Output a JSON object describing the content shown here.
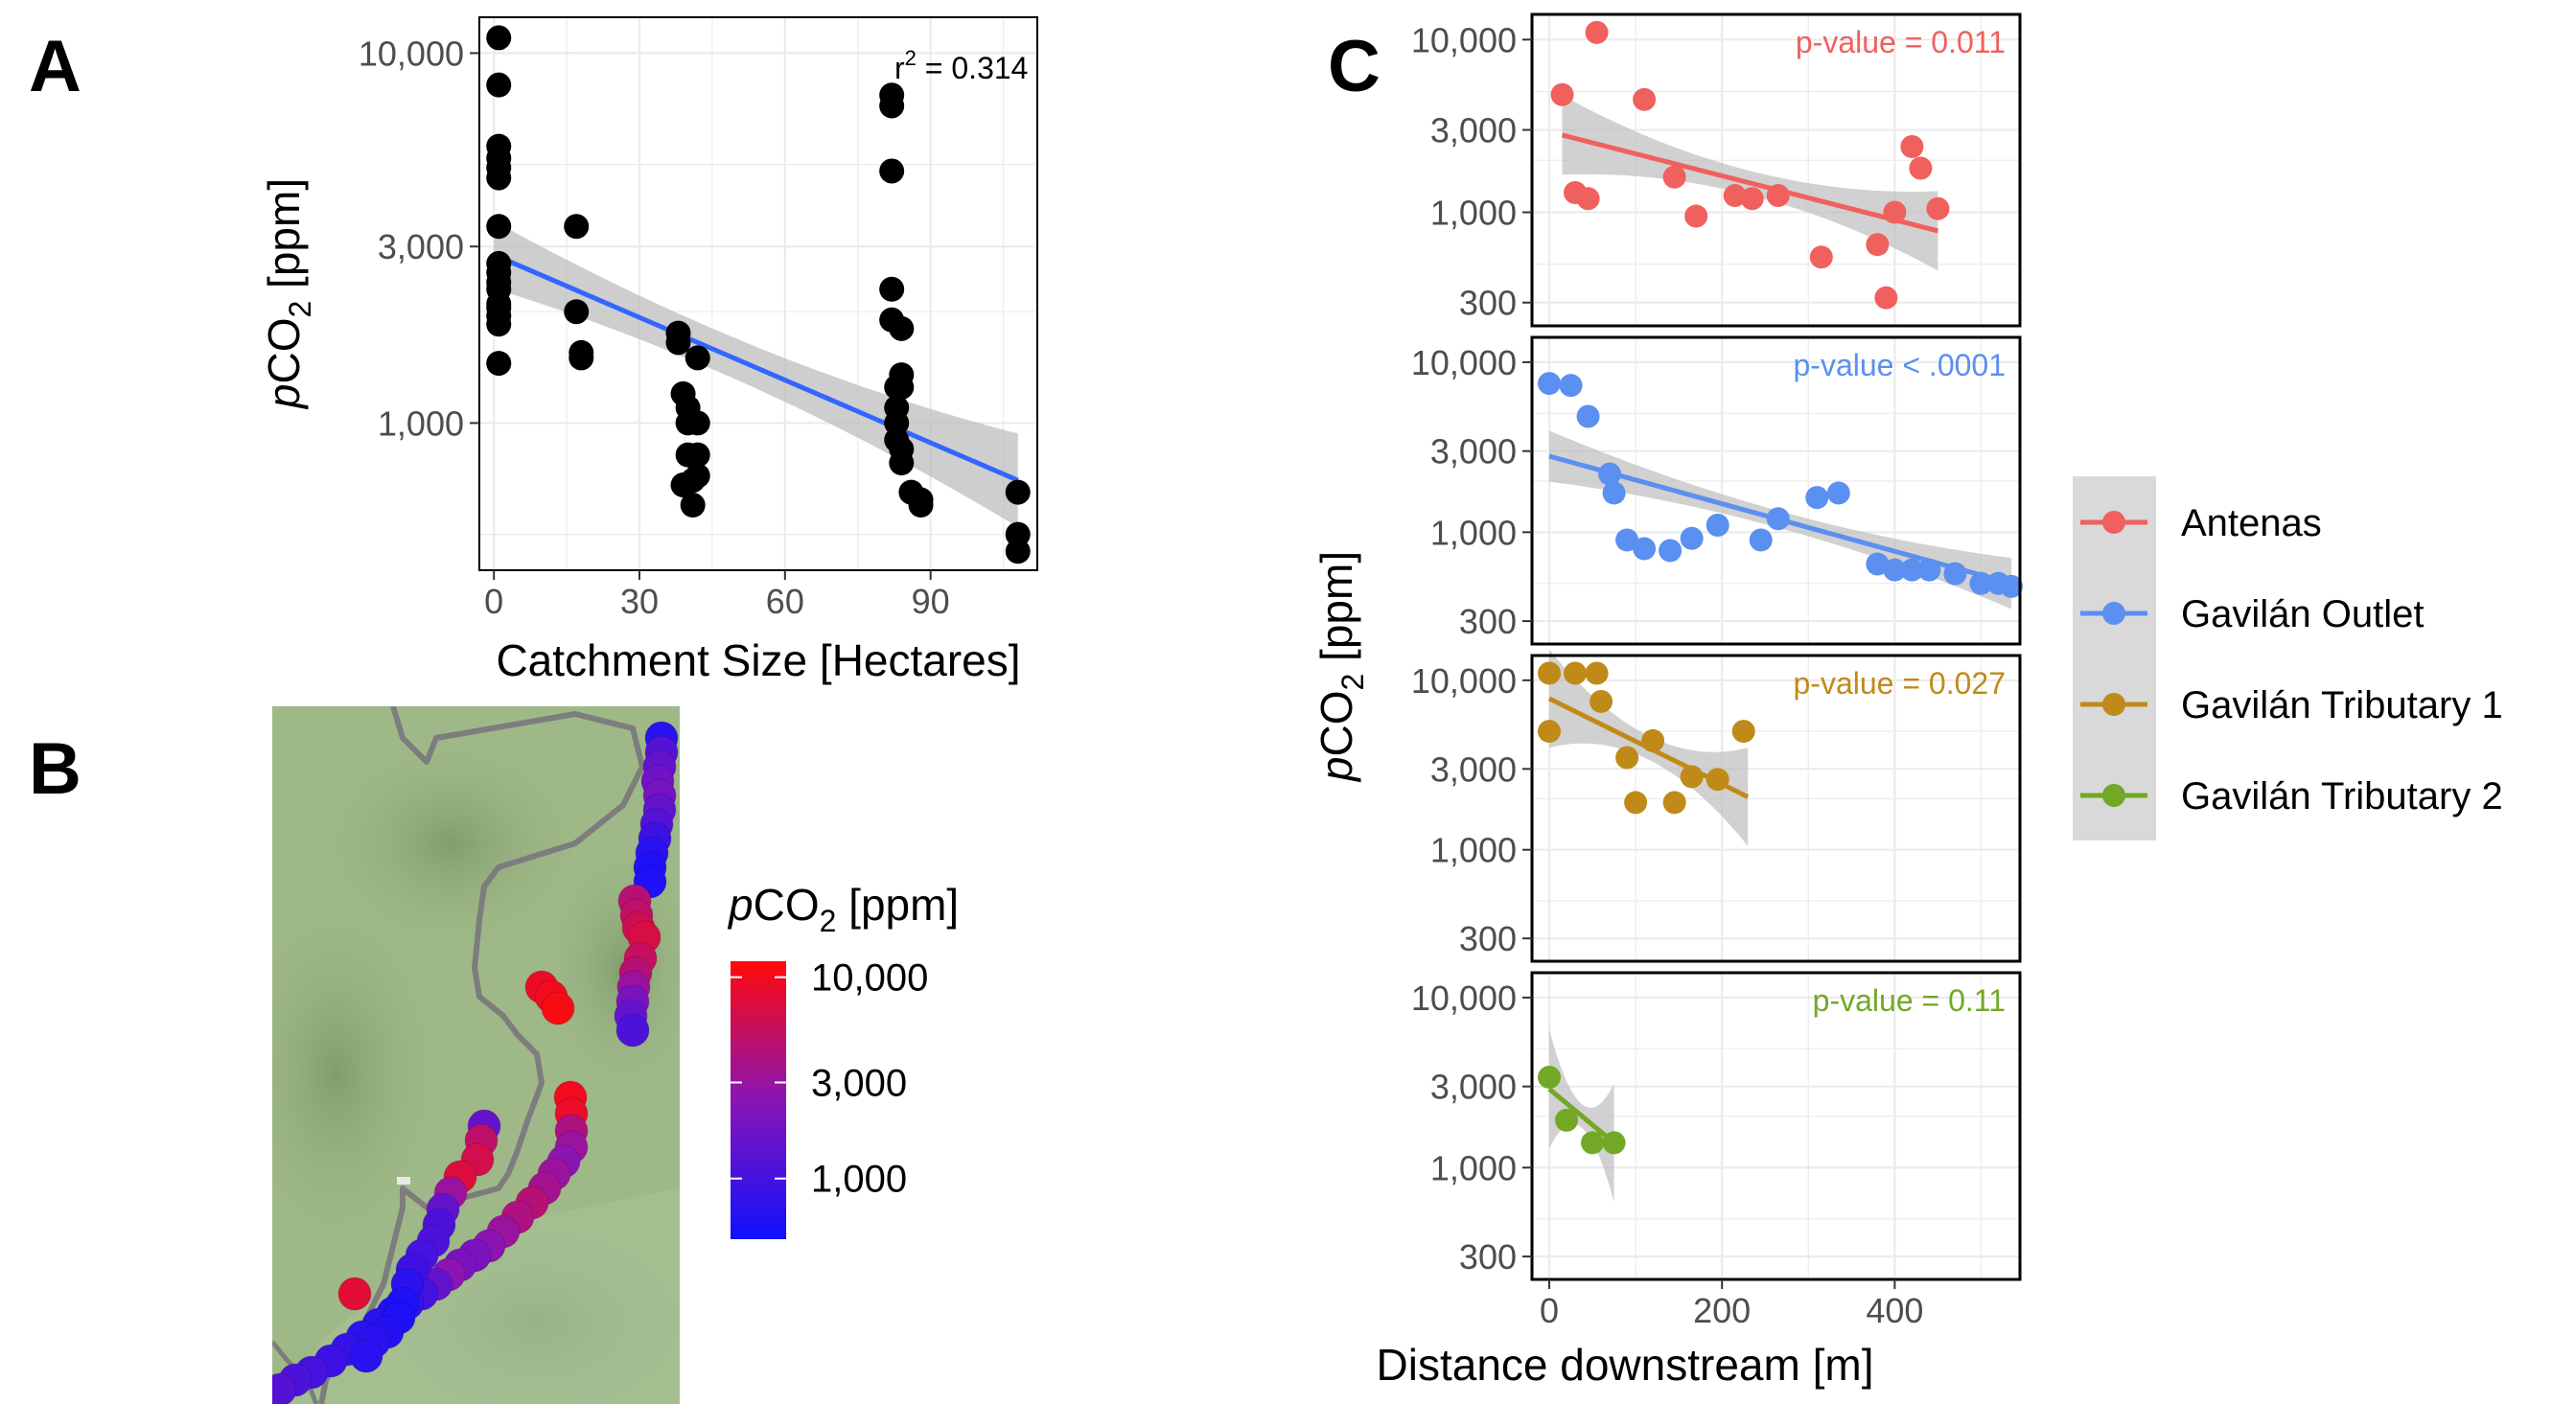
{
  "colors": {
    "black": "#000000",
    "fit_line_A": "#3366ff",
    "ci_band": "#bdbdbd",
    "antenas": "#f0605d",
    "gavilan_outlet": "#5b8ff0",
    "gavilan_trib1": "#c08a18",
    "gavilan_trib2": "#72a825",
    "map_bg": "#9fb888",
    "scale_low": "#1010ff",
    "scale_high": "#ff0a0a"
  },
  "panels": {
    "a_label": "A",
    "b_label": "B",
    "c_label": "C"
  },
  "panelA": {
    "xlabel": "Catchment Size [Hectares]",
    "ylabel": "pCO2 [ppm]",
    "ylabel_p": "p",
    "ylabel_co": "CO",
    "ylabel_sub": "2",
    "ylabel_unit": " [ppm]",
    "r2_r": "r",
    "r2_sup": "2",
    "r2_val": " = 0.314",
    "xticks": [
      "0",
      "30",
      "60",
      "90"
    ],
    "yticks": [
      "1,000",
      "3,000",
      "10,000"
    ]
  },
  "panelB": {
    "legend_title_p": "p",
    "legend_title_co": "CO",
    "legend_title_sub": "2",
    "legend_title_unit": " [ppm]",
    "legend_ticks": [
      "1,000",
      "3,000",
      "10,000"
    ]
  },
  "panelC": {
    "xlabel": "Distance downstream [m]",
    "ylabel_p": "p",
    "ylabel_co": "CO",
    "ylabel_sub": "2",
    "ylabel_unit": " [ppm]",
    "xticks": [
      "0",
      "200",
      "400"
    ],
    "yticks": [
      "300",
      "1,000",
      "3,000",
      "10,000"
    ],
    "legend": [
      "Antenas",
      "Gavilán Outlet",
      "Gavilán Tributary 1",
      "Gavilán Tributary 2"
    ],
    "pvalues": [
      "p-value = 0.011",
      "p-value < .0001",
      "p-value = 0.027",
      "p-value = 0.11"
    ]
  },
  "chart_data": [
    {
      "type": "scatter",
      "title": "",
      "xlabel": "Catchment Size [Hectares]",
      "ylabel": "pCO2 [ppm]",
      "y_scale": "log",
      "xlim": [
        -3,
        112
      ],
      "ylim": [
        400,
        12500
      ],
      "grid": true,
      "annotation": "r2 = 0.314",
      "x": [
        1,
        1,
        1,
        1,
        1,
        1,
        1,
        1,
        1,
        1,
        1,
        1,
        1,
        1,
        1,
        1,
        17,
        17,
        18,
        18,
        38,
        38,
        39,
        39,
        40,
        40,
        40,
        41,
        41,
        42,
        42,
        42,
        42,
        82,
        82,
        82,
        82,
        82,
        83,
        83,
        83,
        83,
        84,
        84,
        84,
        84,
        84,
        86,
        88,
        88,
        108,
        108,
        108
      ],
      "y": [
        11000,
        8200,
        5600,
        5200,
        4900,
        4600,
        3400,
        2700,
        2550,
        2400,
        2300,
        2100,
        2050,
        1950,
        1850,
        1450,
        3400,
        2000,
        1550,
        1500,
        1750,
        1650,
        1200,
        680,
        820,
        1000,
        1100,
        600,
        700,
        1500,
        820,
        1000,
        720,
        7700,
        7200,
        4800,
        2300,
        1900,
        1250,
        1100,
        1000,
        900,
        850,
        780,
        1350,
        1800,
        1250,
        650,
        620,
        600,
        650,
        500,
        450
      ],
      "fit": {
        "x": [
          0,
          108
        ],
        "y": [
          2850,
          700
        ]
      }
    },
    {
      "type": "map_scatter",
      "legend_title": "pCO2 [ppm]",
      "color_scale": "log",
      "color_range": [
        500,
        12000
      ],
      "legend_ticks": [
        1000,
        3000,
        10000
      ],
      "values": [
        700,
        1200,
        1500,
        1700,
        1900,
        1500,
        1200,
        900,
        700,
        600,
        600,
        4500,
        5000,
        6000,
        7000,
        5500,
        4500,
        3000,
        2000,
        1500,
        1100,
        9000,
        10000,
        11000,
        10000,
        9000,
        4000,
        3000,
        2500,
        3000,
        3500,
        4500,
        4000,
        3000,
        2500,
        2000,
        2000,
        2500,
        1500,
        1000,
        800,
        600,
        700,
        700,
        800,
        900,
        1000,
        1100,
        1200,
        1500,
        5000,
        6500,
        7500,
        3000,
        1500,
        1100,
        1100,
        1000,
        900,
        700,
        600,
        600,
        650,
        700,
        700,
        8000
      ]
    },
    {
      "type": "scatter",
      "facets": [
        {
          "name": "Antenas",
          "p_value": "p-value = 0.011",
          "x": [
            15,
            30,
            45,
            55,
            110,
            145,
            170,
            215,
            235,
            265,
            315,
            380,
            390,
            400,
            420,
            430,
            450
          ],
          "y": [
            4800,
            1300,
            1200,
            11000,
            4500,
            1600,
            950,
            1250,
            1200,
            1250,
            550,
            650,
            320,
            1000,
            2400,
            1800,
            1050
          ],
          "fit": {
            "x": [
              15,
              450
            ],
            "y": [
              2800,
              780
            ]
          }
        },
        {
          "name": "Gavilán Outlet",
          "p_value": "p-value < .0001",
          "x": [
            0,
            25,
            45,
            70,
            75,
            90,
            110,
            140,
            165,
            195,
            245,
            265,
            310,
            335,
            380,
            400,
            420,
            440,
            470,
            500,
            520,
            535
          ],
          "y": [
            7500,
            7300,
            4800,
            2200,
            1700,
            900,
            800,
            780,
            920,
            1100,
            900,
            1200,
            1600,
            1700,
            650,
            600,
            600,
            600,
            570,
            500,
            500,
            480
          ],
          "fit": {
            "x": [
              0,
              535
            ],
            "y": [
              2800,
              500
            ]
          }
        },
        {
          "name": "Gavilán Tributary 1",
          "p_value": "p-value = 0.027",
          "x": [
            0,
            0,
            30,
            55,
            60,
            90,
            100,
            120,
            145,
            165,
            195,
            225
          ],
          "y": [
            11000,
            5000,
            11000,
            11000,
            7500,
            3500,
            1900,
            4400,
            1900,
            2700,
            2600,
            5000
          ],
          "fit": {
            "x": [
              0,
              230
            ],
            "y": [
              7800,
              2050
            ]
          }
        },
        {
          "name": "Gavilán Tributary 2",
          "p_value": "p-value = 0.11",
          "x": [
            0,
            20,
            50,
            75
          ],
          "y": [
            3400,
            1900,
            1400,
            1400
          ],
          "fit": {
            "x": [
              0,
              75
            ],
            "y": [
              2900,
              1400
            ]
          }
        }
      ],
      "xlabel": "Distance downstream [m]",
      "ylabel": "pCO2 [ppm]",
      "y_scale": "log",
      "xlim": [
        -20,
        545
      ],
      "ylim": [
        220,
        14000
      ],
      "grid": true,
      "legend_position": "right"
    }
  ]
}
